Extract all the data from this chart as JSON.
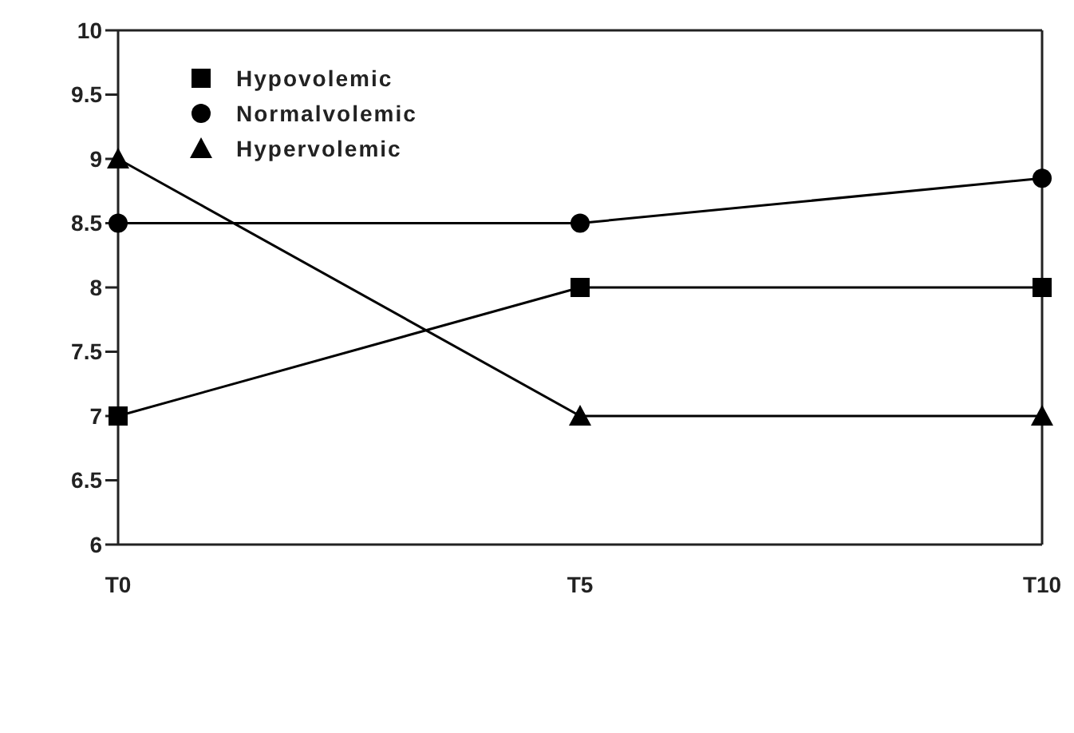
{
  "chart_data": {
    "type": "line",
    "categories": [
      "T0",
      "T5",
      "T10"
    ],
    "series": [
      {
        "name": "Hypovolemic",
        "color": "#000000",
        "marker": "square",
        "values": [
          7,
          8,
          8
        ]
      },
      {
        "name": "Normalvolemic",
        "color": "#000000",
        "marker": "circle",
        "values": [
          8.5,
          8.5,
          8.85
        ]
      },
      {
        "name": "Hypervolemic",
        "color": "#000000",
        "marker": "triangle",
        "values": [
          9,
          7,
          7
        ]
      }
    ],
    "ylim": [
      6,
      10
    ],
    "yticks": [
      6,
      6.5,
      7,
      7.5,
      8,
      8.5,
      9,
      9.5,
      10
    ],
    "grid": false,
    "legend": "top left",
    "line_style": "solid"
  }
}
